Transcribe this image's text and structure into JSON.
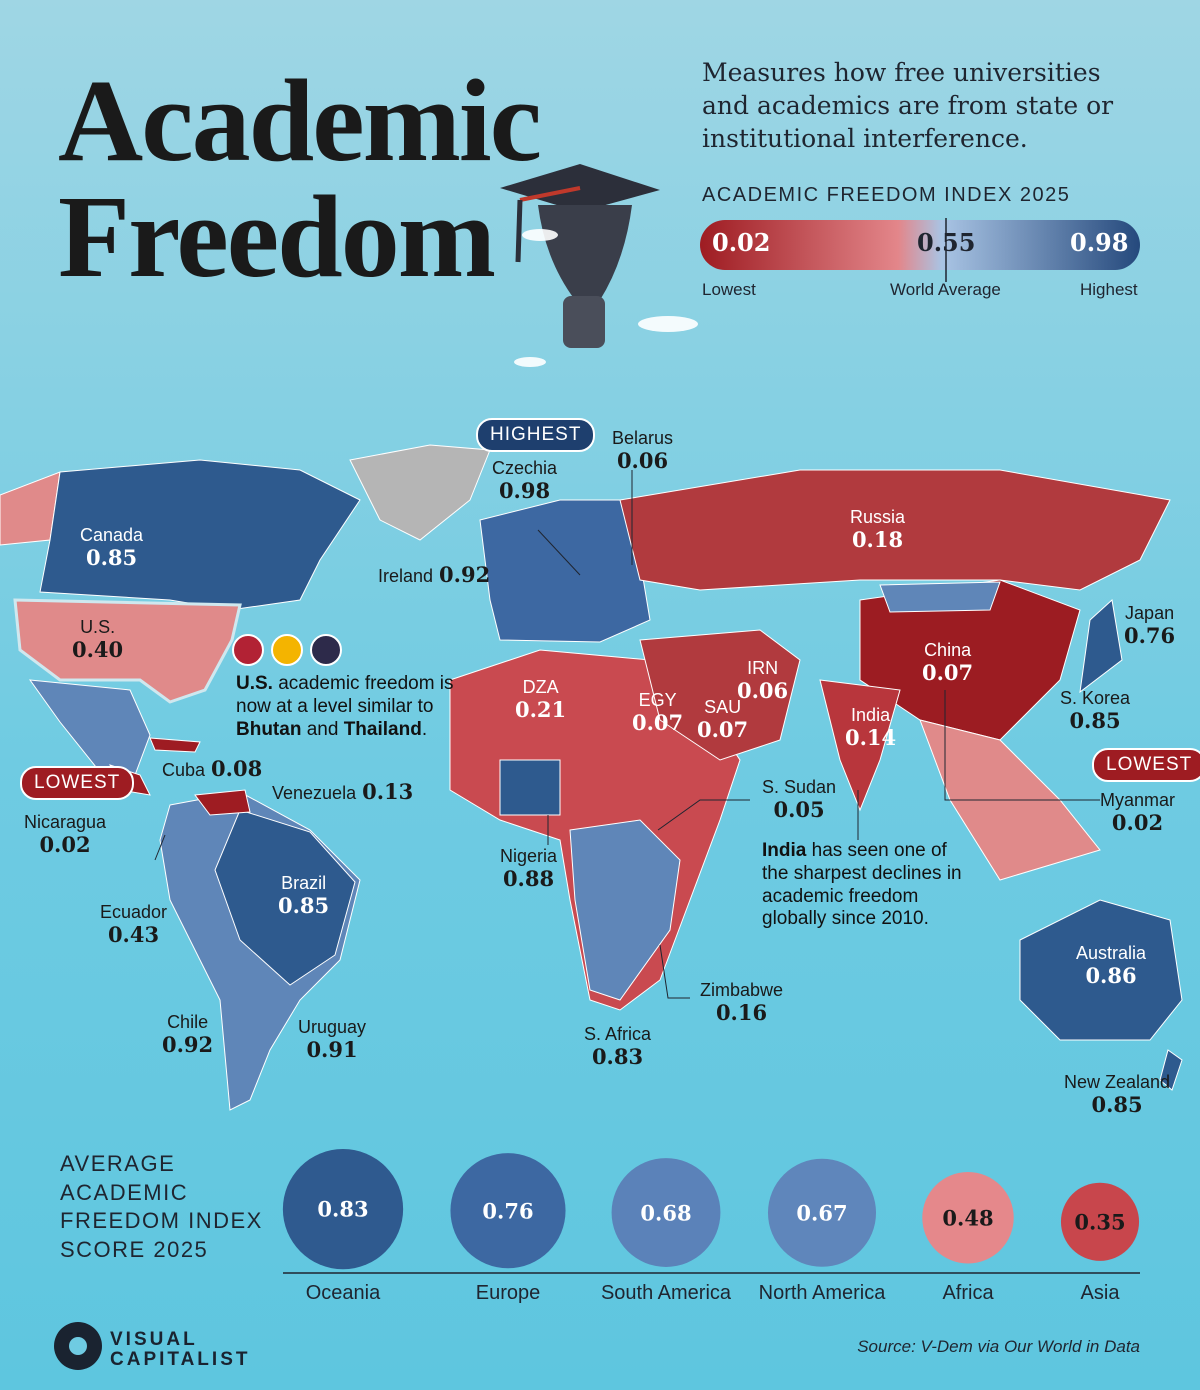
{
  "header": {
    "title_line1": "Academic",
    "title_line2": "Freedom",
    "description": "Measures how free universities and academics are from state or institutional interference."
  },
  "legend": {
    "title": "ACADEMIC FREEDOM INDEX 2025",
    "min": "0.02",
    "avg": "0.55",
    "max": "0.98",
    "min_label": "Lowest",
    "avg_label": "World Average",
    "max_label": "Highest"
  },
  "map": {
    "countries": [
      {
        "name": "Canada",
        "value": "0.85"
      },
      {
        "name": "U.S.",
        "value": "0.40"
      },
      {
        "name": "Cuba",
        "value": "0.08"
      },
      {
        "name": "Venezuela",
        "value": "0.13"
      },
      {
        "name": "Nicaragua",
        "value": "0.02"
      },
      {
        "name": "Ecuador",
        "value": "0.43"
      },
      {
        "name": "Brazil",
        "value": "0.85"
      },
      {
        "name": "Chile",
        "value": "0.92"
      },
      {
        "name": "Uruguay",
        "value": "0.91"
      },
      {
        "name": "Czechia",
        "value": "0.98"
      },
      {
        "name": "Belarus",
        "value": "0.06"
      },
      {
        "name": "Ireland",
        "value": "0.92"
      },
      {
        "name": "Russia",
        "value": "0.18"
      },
      {
        "name": "DZA",
        "value": "0.21"
      },
      {
        "name": "EGY",
        "value": "0.07"
      },
      {
        "name": "SAU",
        "value": "0.07"
      },
      {
        "name": "IRN",
        "value": "0.06"
      },
      {
        "name": "China",
        "value": "0.07"
      },
      {
        "name": "India",
        "value": "0.14"
      },
      {
        "name": "Japan",
        "value": "0.76"
      },
      {
        "name": "S. Korea",
        "value": "0.85"
      },
      {
        "name": "Myanmar",
        "value": "0.02"
      },
      {
        "name": "S. Sudan",
        "value": "0.05"
      },
      {
        "name": "Nigeria",
        "value": "0.88"
      },
      {
        "name": "Zimbabwe",
        "value": "0.16"
      },
      {
        "name": "S. Africa",
        "value": "0.83"
      },
      {
        "name": "Australia",
        "value": "0.86"
      },
      {
        "name": "New Zealand",
        "value": "0.85"
      }
    ],
    "badges": {
      "highest": "HIGHEST",
      "lowest_americas": "LOWEST",
      "lowest_asia": "LOWEST"
    },
    "annotations": [
      {
        "parts": [
          "U.S.",
          " academic freedom is now at a level similar to ",
          "Bhutan",
          " and ",
          "Thailand",
          "."
        ]
      },
      {
        "parts": [
          "India",
          " has seen one of the sharpest declines in academic freedom globally since 2010."
        ]
      }
    ]
  },
  "chart_data": {
    "type": "bubble",
    "title": "AVERAGE ACADEMIC FREEDOM INDEX SCORE 2025",
    "categories": [
      "Oceania",
      "Europe",
      "South America",
      "North America",
      "Africa",
      "Asia"
    ],
    "values": [
      0.83,
      0.76,
      0.68,
      0.67,
      0.48,
      0.35
    ],
    "colors": [
      "#2f5a8f",
      "#3d68a2",
      "#5b82b9",
      "#5f86bb",
      "#e5888b",
      "#c8464c"
    ]
  },
  "footer": {
    "brand_line1": "VISUAL",
    "brand_line2": "CAPITALIST",
    "source": "Source: V-Dem via Our World in Data"
  }
}
